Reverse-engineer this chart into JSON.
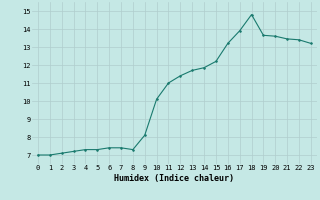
{
  "x": [
    0,
    1,
    2,
    3,
    4,
    5,
    6,
    7,
    8,
    9,
    10,
    11,
    12,
    13,
    14,
    15,
    16,
    17,
    18,
    19,
    20,
    21,
    22,
    23
  ],
  "y": [
    7.0,
    7.0,
    7.1,
    7.2,
    7.3,
    7.3,
    7.4,
    7.4,
    7.3,
    8.1,
    10.1,
    11.0,
    11.4,
    11.7,
    11.85,
    12.2,
    13.2,
    13.9,
    14.8,
    13.65,
    13.6,
    13.45,
    13.4,
    13.2
  ],
  "xlabel": "Humidex (Indice chaleur)",
  "xlim": [
    -0.5,
    23.5
  ],
  "ylim": [
    6.5,
    15.5
  ],
  "yticks": [
    7,
    8,
    9,
    10,
    11,
    12,
    13,
    14,
    15
  ],
  "xticks": [
    0,
    1,
    2,
    3,
    4,
    5,
    6,
    7,
    8,
    9,
    10,
    11,
    12,
    13,
    14,
    15,
    16,
    17,
    18,
    19,
    20,
    21,
    22,
    23
  ],
  "line_color": "#1a7a6e",
  "marker_color": "#1a7a6e",
  "bg_color": "#c5e8e5",
  "grid_color": "#b0cece",
  "axis_fontsize": 6.0,
  "tick_fontsize": 5.0
}
